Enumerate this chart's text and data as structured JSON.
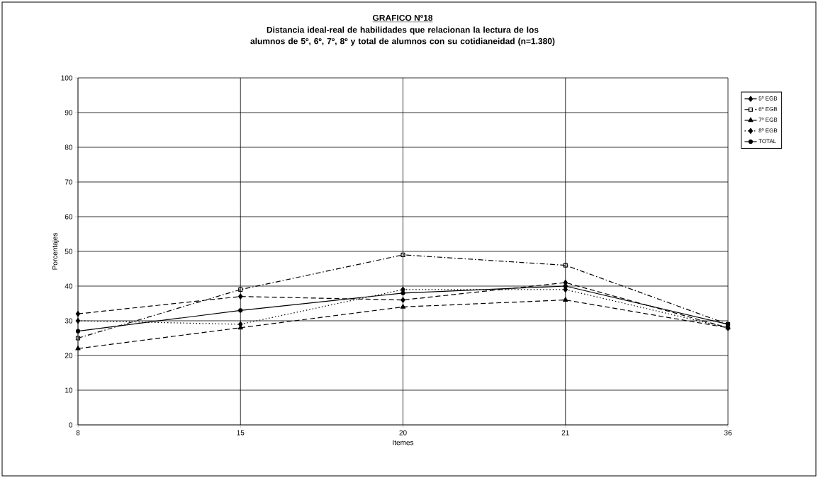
{
  "chart_data": {
    "type": "line",
    "title": "GRAFICO Nº18",
    "subtitle": "Distancia ideal-real de habilidades que relacionan la lectura de los alumnos de 5º, 6º, 7º, 8º y total de alumnos con su cotidianeidad (n=1.380)",
    "xlabel": "Itemes",
    "ylabel": "Porcentajes",
    "categories": [
      "8",
      "15",
      "20",
      "21",
      "36"
    ],
    "series": [
      {
        "name": "5º EGB",
        "color": "#000000",
        "values": [
          32,
          37,
          36,
          41,
          28
        ],
        "marker": "diamond",
        "line_style": "dashed"
      },
      {
        "name": "6º EGB",
        "color": "#000000",
        "values": [
          25,
          39,
          49,
          46,
          29
        ],
        "marker": "square",
        "line_style": "dashdot"
      },
      {
        "name": "7º EGB",
        "color": "#000000",
        "values": [
          22,
          28,
          34,
          36,
          28
        ],
        "marker": "triangle",
        "line_style": "dashed"
      },
      {
        "name": "8º EGB",
        "color": "#000000",
        "values": [
          30,
          29,
          39,
          39,
          28
        ],
        "marker": "diamond",
        "line_style": "dotted"
      },
      {
        "name": "TOTAL",
        "color": "#000000",
        "values": [
          27,
          33,
          38,
          40,
          29
        ],
        "marker": "circle",
        "line_style": "solid"
      }
    ],
    "ylim": [
      0,
      100
    ],
    "yticks": [
      0,
      10,
      20,
      30,
      40,
      50,
      60,
      70,
      80,
      90,
      100
    ],
    "grid": true,
    "legend": "top right"
  }
}
